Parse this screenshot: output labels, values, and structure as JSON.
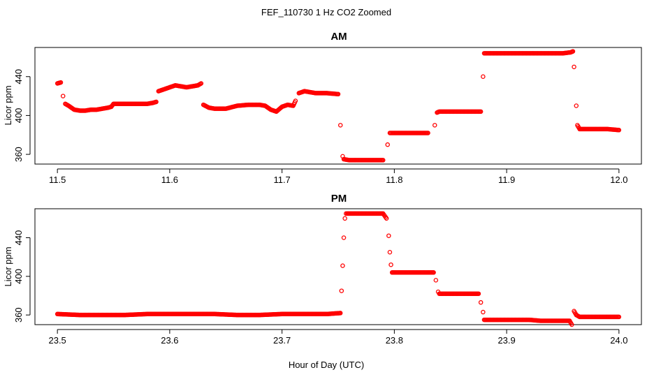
{
  "figure": {
    "title": "FEF_110730  1 Hz CO2 Zoomed",
    "xlabel": "Hour of Day (UTC)"
  },
  "chart_data": [
    {
      "type": "scatter",
      "title": "AM",
      "ylabel": "Licor ppm",
      "xlabel": "Hour of Day (UTC)",
      "xlim": [
        11.48,
        12.02
      ],
      "ylim": [
        350,
        470
      ],
      "xticks": [
        11.5,
        11.6,
        11.7,
        11.8,
        11.9,
        12.0
      ],
      "xtick_labels": [
        "11.5",
        "11.6",
        "11.7",
        "11.8",
        "11.9",
        "12.0"
      ],
      "yticks": [
        360,
        400,
        440
      ],
      "ytick_labels": [
        "360",
        "400",
        "440"
      ],
      "grid": false,
      "marker_color": "#ff0000",
      "series": [
        {
          "x": [
            11.5,
            11.503,
            11.505,
            11.507,
            11.51,
            11.515,
            11.52,
            11.525,
            11.53,
            11.535,
            11.54,
            11.545,
            11.548,
            11.55,
            11.555,
            11.56,
            11.57,
            11.58,
            11.585,
            11.588,
            11.59,
            11.595,
            11.6,
            11.605,
            11.61,
            11.615,
            11.62,
            11.625,
            11.628,
            11.63,
            11.635,
            11.64,
            11.65,
            11.66,
            11.67,
            11.68,
            11.685,
            11.69,
            11.695,
            11.7,
            11.705,
            11.71,
            11.712,
            11.715,
            11.72,
            11.725,
            11.73,
            11.74,
            11.75,
            11.752,
            11.754,
            11.755,
            11.76,
            11.77,
            11.78,
            11.79,
            11.794,
            11.796,
            11.8,
            11.81,
            11.82,
            11.83,
            11.836,
            11.838,
            11.84,
            11.85,
            11.86,
            11.87,
            11.877,
            11.879,
            11.88,
            11.89,
            11.9,
            11.91,
            11.92,
            11.93,
            11.94,
            11.95,
            11.957,
            11.959,
            11.96,
            11.962,
            11.963,
            11.965,
            11.97,
            11.98,
            11.99,
            12.0
          ],
          "y": [
            433,
            434,
            420,
            412,
            410,
            406,
            405,
            405,
            406,
            406,
            407,
            408,
            409,
            412,
            412,
            412,
            412,
            412,
            413,
            414,
            425,
            427,
            429,
            431,
            430,
            429,
            430,
            431,
            433,
            411,
            408,
            407,
            407,
            410,
            411,
            411,
            410,
            406,
            404,
            409,
            411,
            410,
            415,
            423,
            425,
            424,
            423,
            423,
            422,
            390,
            358,
            355,
            354,
            354,
            354,
            354,
            370,
            382,
            382,
            382,
            382,
            382,
            390,
            403,
            404,
            404,
            404,
            404,
            404,
            440,
            464,
            464,
            464,
            464,
            464,
            464,
            464,
            464,
            465,
            466,
            450,
            410,
            390,
            386,
            386,
            386,
            386,
            385
          ]
        }
      ]
    },
    {
      "type": "scatter",
      "title": "PM",
      "ylabel": "Licor ppm",
      "xlabel": "Hour of Day (UTC)",
      "xlim": [
        23.48,
        24.02
      ],
      "ylim": [
        350,
        470
      ],
      "xticks": [
        23.5,
        23.6,
        23.7,
        23.8,
        23.9,
        24.0
      ],
      "xtick_labels": [
        "23.5",
        "23.6",
        "23.7",
        "23.8",
        "23.9",
        "24.0"
      ],
      "yticks": [
        360,
        400,
        440
      ],
      "ytick_labels": [
        "360",
        "400",
        "440"
      ],
      "grid": false,
      "marker_color": "#ff0000",
      "series": [
        {
          "x": [
            23.5,
            23.52,
            23.54,
            23.56,
            23.58,
            23.6,
            23.62,
            23.64,
            23.66,
            23.68,
            23.7,
            23.72,
            23.74,
            23.752,
            23.753,
            23.754,
            23.755,
            23.756,
            23.757,
            23.758,
            23.76,
            23.77,
            23.78,
            23.79,
            23.793,
            23.795,
            23.796,
            23.797,
            23.798,
            23.8,
            23.81,
            23.82,
            23.83,
            23.835,
            23.837,
            23.839,
            23.84,
            23.85,
            23.86,
            23.87,
            23.875,
            23.877,
            23.879,
            23.88,
            23.89,
            23.9,
            23.91,
            23.92,
            23.93,
            23.94,
            23.95,
            23.956,
            23.958,
            23.96,
            23.962,
            23.965,
            23.97,
            23.98,
            23.99,
            24.0
          ],
          "y": [
            361,
            360,
            360,
            360,
            361,
            361,
            361,
            361,
            360,
            360,
            361,
            361,
            361,
            362,
            385,
            411,
            440,
            460,
            465,
            465,
            465,
            465,
            465,
            465,
            460,
            442,
            425,
            412,
            404,
            404,
            404,
            404,
            404,
            404,
            396,
            384,
            382,
            382,
            382,
            382,
            382,
            373,
            363,
            355,
            355,
            355,
            355,
            355,
            354,
            354,
            354,
            354,
            350,
            364,
            360,
            358,
            358,
            358,
            358,
            358
          ]
        }
      ]
    }
  ]
}
